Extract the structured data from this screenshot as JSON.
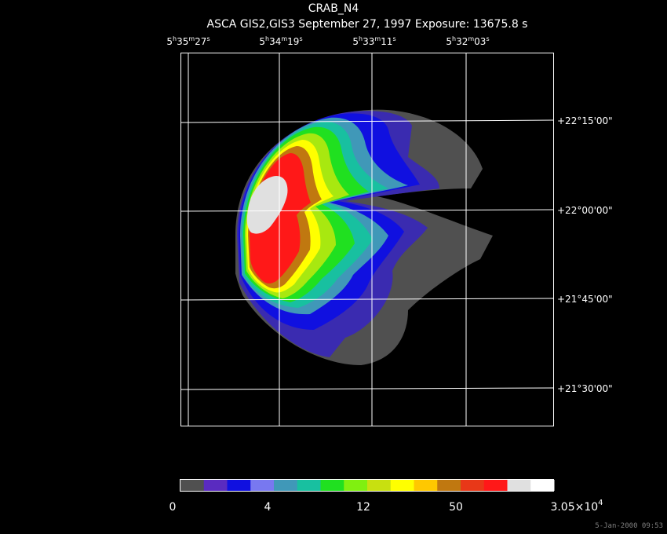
{
  "header": {
    "object_name": "CRAB_N4",
    "subtitle": "ASCA GIS2,GIS3 September 27, 1997 Exposure: 13675.8 s"
  },
  "ra_ticks": [
    {
      "h": "5",
      "m": "35",
      "s": "27"
    },
    {
      "h": "5",
      "m": "34",
      "s": "19"
    },
    {
      "h": "5",
      "m": "33",
      "s": "11"
    },
    {
      "h": "5",
      "m": "32",
      "s": "03"
    }
  ],
  "dec_ticks": [
    "+22°15'00\"",
    "+22°00'00\"",
    "+21°45'00\"",
    "+21°30'00\""
  ],
  "colorbar": {
    "colors": [
      "#505050",
      "#5a2bc0",
      "#1010e0",
      "#7878f0",
      "#4098b8",
      "#18c0a0",
      "#20e020",
      "#80f010",
      "#c8e010",
      "#ffff00",
      "#ffc800",
      "#c07810",
      "#e83818",
      "#ff1818",
      "#e0e0e0",
      "#ffffff"
    ],
    "labels": [
      "0",
      "4",
      "12",
      "50"
    ],
    "max_label": {
      "base": "3.05×10",
      "exp": "4"
    }
  },
  "footer": {
    "timestamp": "5-Jan-2000 09:53"
  }
}
